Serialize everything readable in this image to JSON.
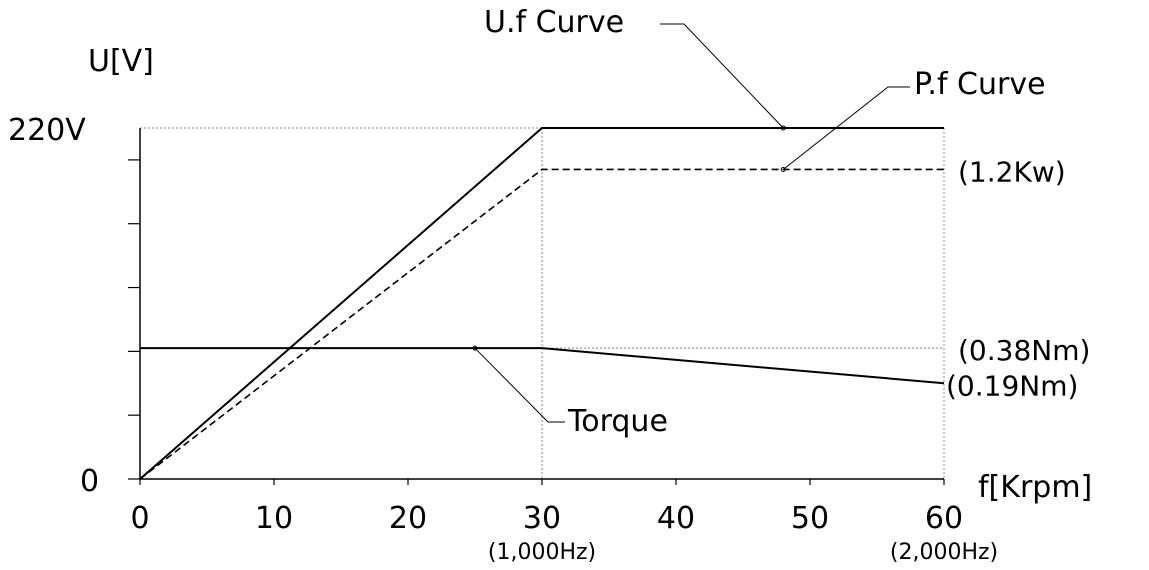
{
  "chart_data": {
    "type": "line",
    "xlabel": "f[Krpm]",
    "ylabel": "U[V]",
    "xlim": [
      0,
      60
    ],
    "ylim": [
      0,
      220
    ],
    "x_ticks": [
      {
        "value": 0,
        "label": "0"
      },
      {
        "value": 10,
        "label": "10"
      },
      {
        "value": 20,
        "label": "20"
      },
      {
        "value": 30,
        "label": "30",
        "sublabel": "(1,000Hz)"
      },
      {
        "value": 40,
        "label": "40"
      },
      {
        "value": 50,
        "label": "50"
      },
      {
        "value": 60,
        "label": "60",
        "sublabel": "(2,000Hz)"
      }
    ],
    "y_tick_values": [
      0,
      40,
      80,
      120,
      160,
      200
    ],
    "y_labels": [
      {
        "value": 220,
        "label": "220V"
      },
      {
        "value": 0,
        "label": "0"
      }
    ],
    "series": [
      {
        "name": "U.f Curve",
        "style": "solid",
        "x": [
          0,
          30,
          60
        ],
        "y": [
          0,
          220,
          220
        ],
        "annotation_at": [
          48,
          220
        ],
        "right_label": ""
      },
      {
        "name": "P.f Curve",
        "style": "dashed",
        "x": [
          0,
          30,
          60
        ],
        "y": [
          0,
          194,
          194
        ],
        "annotation_at": [
          48,
          194
        ],
        "right_label": "(1.2Kw)"
      },
      {
        "name": "Torque",
        "style": "solid",
        "x": [
          0,
          30,
          60
        ],
        "y": [
          82,
          82,
          60
        ],
        "annotation_at": [
          25,
          82
        ],
        "right_label": "(0.38Nm)",
        "end_label": "(0.19Nm)"
      }
    ],
    "reference_lines": {
      "vertical_x": [
        30,
        60
      ],
      "horizontal_y": [
        220,
        82
      ]
    }
  }
}
